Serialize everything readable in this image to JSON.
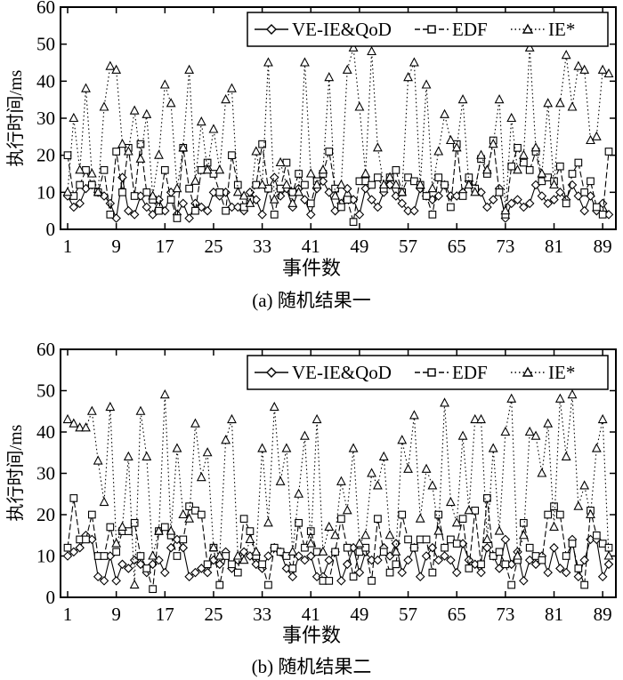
{
  "chart_data": [
    {
      "type": "line",
      "caption": "(a) 随机结果一",
      "xlabel": "事件数",
      "ylabel": "执行时间/ms",
      "xlim": [
        1,
        90
      ],
      "ylim": [
        0,
        60
      ],
      "x_ticks": [
        1,
        9,
        17,
        25,
        33,
        41,
        49,
        57,
        65,
        73,
        81,
        89
      ],
      "y_ticks": [
        0,
        10,
        20,
        30,
        40,
        50,
        60
      ],
      "legend_position": "top-right",
      "series": [
        {
          "name": "VE-IE&QoD",
          "marker": "diamond",
          "dash": "solid",
          "values": [
            9,
            6,
            7,
            11,
            12,
            10,
            9,
            7,
            3,
            14,
            5,
            4,
            9,
            6,
            4,
            8,
            5,
            10,
            4,
            7,
            3,
            7,
            6,
            5,
            10,
            9,
            10,
            6,
            6,
            5,
            10,
            8,
            4,
            11,
            14,
            9,
            11,
            6,
            11,
            8,
            4,
            11,
            13,
            10,
            5,
            7,
            11,
            8,
            4,
            11,
            8,
            6,
            10,
            12,
            9,
            7,
            5,
            5,
            11,
            9,
            8,
            9,
            12,
            9,
            9,
            10,
            13,
            11,
            10,
            6,
            8,
            11,
            3,
            7,
            8,
            6,
            7,
            12,
            9,
            7,
            8,
            10,
            8,
            12,
            9,
            5,
            9,
            5,
            7,
            4
          ]
        },
        {
          "name": "EDF",
          "marker": "square",
          "dash": "dashed",
          "values": [
            20,
            9,
            12,
            16,
            12,
            10,
            16,
            4,
            21,
            10,
            22,
            9,
            23,
            10,
            8,
            5,
            16,
            8,
            3,
            22,
            11,
            5,
            16,
            18,
            15,
            10,
            5,
            20,
            12,
            6,
            8,
            12,
            23,
            11,
            4,
            11,
            18,
            10,
            15,
            12,
            7,
            13,
            15,
            21,
            11,
            6,
            8,
            2,
            13,
            13,
            12,
            14,
            11,
            14,
            16,
            10,
            14,
            13,
            12,
            9,
            4,
            14,
            12,
            6,
            23,
            9,
            14,
            11,
            19,
            15,
            24,
            10,
            4,
            17,
            22,
            18,
            16,
            21,
            13,
            14,
            13,
            17,
            7,
            15,
            18,
            10,
            13,
            6,
            4,
            21
          ]
        },
        {
          "name": "IE*",
          "marker": "triangle",
          "dash": "dotted",
          "values": [
            10,
            30,
            16,
            38,
            15,
            10,
            33,
            44,
            43,
            23,
            21,
            32,
            19,
            31,
            9,
            20,
            39,
            34,
            11,
            22,
            43,
            13,
            29,
            16,
            27,
            16,
            35,
            38,
            10,
            9,
            7,
            21,
            12,
            45,
            8,
            18,
            12,
            7,
            10,
            45,
            15,
            12,
            16,
            41,
            9,
            12,
            43,
            49,
            33,
            15,
            48,
            22,
            12,
            14,
            12,
            10,
            41,
            45,
            12,
            39,
            11,
            21,
            31,
            24,
            22,
            35,
            12,
            10,
            20,
            16,
            23,
            35,
            5,
            30,
            16,
            20,
            49,
            22,
            15,
            34,
            12,
            34,
            47,
            33,
            44,
            43,
            24,
            25,
            43,
            42
          ]
        }
      ]
    },
    {
      "type": "line",
      "caption": "(b) 随机结果二",
      "xlabel": "事件数",
      "ylabel": "执行时间/ms",
      "xlim": [
        1,
        90
      ],
      "ylim": [
        0,
        60
      ],
      "x_ticks": [
        1,
        9,
        17,
        25,
        33,
        41,
        49,
        57,
        65,
        73,
        81,
        89
      ],
      "y_ticks": [
        0,
        10,
        20,
        30,
        40,
        50,
        60
      ],
      "legend_position": "top-right",
      "series": [
        {
          "name": "VE-IE&QoD",
          "marker": "diamond",
          "dash": "solid",
          "values": [
            10,
            11,
            12,
            15,
            14,
            5,
            4,
            10,
            4,
            8,
            7,
            9,
            8,
            6,
            8,
            9,
            6,
            12,
            14,
            12,
            5,
            6,
            7,
            6,
            9,
            8,
            11,
            7,
            9,
            11,
            10,
            8,
            7,
            10,
            12,
            11,
            7,
            5,
            10,
            9,
            10,
            5,
            5,
            9,
            11,
            4,
            8,
            12,
            6,
            11,
            9,
            9,
            12,
            10,
            13,
            6,
            9,
            12,
            5,
            10,
            12,
            9,
            10,
            9,
            6,
            13,
            9,
            8,
            6,
            12,
            10,
            7,
            14,
            8,
            11,
            4,
            9,
            8,
            10,
            6,
            12,
            7,
            6,
            14,
            5,
            9,
            14,
            14,
            5,
            8
          ]
        },
        {
          "name": "EDF",
          "marker": "square",
          "dash": "dashed",
          "values": [
            12,
            24,
            14,
            14,
            20,
            10,
            10,
            17,
            11,
            16,
            16,
            18,
            10,
            7,
            2,
            16,
            17,
            15,
            10,
            14,
            22,
            21,
            20,
            8,
            12,
            3,
            10,
            8,
            6,
            19,
            16,
            10,
            8,
            3,
            12,
            11,
            10,
            7,
            18,
            12,
            16,
            11,
            4,
            4,
            11,
            19,
            12,
            5,
            11,
            12,
            4,
            19,
            11,
            6,
            8,
            20,
            14,
            12,
            14,
            14,
            6,
            20,
            12,
            14,
            13,
            19,
            7,
            21,
            8,
            24,
            10,
            11,
            8,
            3,
            9,
            18,
            12,
            10,
            9,
            20,
            22,
            20,
            10,
            13,
            7,
            3,
            21,
            15,
            13,
            12
          ]
        },
        {
          "name": "IE*",
          "marker": "triangle",
          "dash": "dotted",
          "values": [
            43,
            42,
            41,
            41,
            45,
            33,
            23,
            46,
            13,
            17,
            34,
            3,
            45,
            34,
            10,
            16,
            49,
            16,
            36,
            20,
            19,
            42,
            29,
            35,
            12,
            10,
            38,
            43,
            10,
            9,
            14,
            11,
            36,
            18,
            46,
            28,
            36,
            11,
            25,
            39,
            13,
            43,
            11,
            17,
            15,
            28,
            21,
            36,
            13,
            15,
            30,
            27,
            34,
            15,
            11,
            38,
            31,
            44,
            19,
            31,
            27,
            16,
            47,
            23,
            18,
            39,
            21,
            43,
            43,
            14,
            36,
            16,
            40,
            48,
            10,
            15,
            40,
            39,
            30,
            42,
            17,
            48,
            34,
            49,
            22,
            27,
            20,
            36,
            43,
            10
          ]
        }
      ]
    }
  ]
}
